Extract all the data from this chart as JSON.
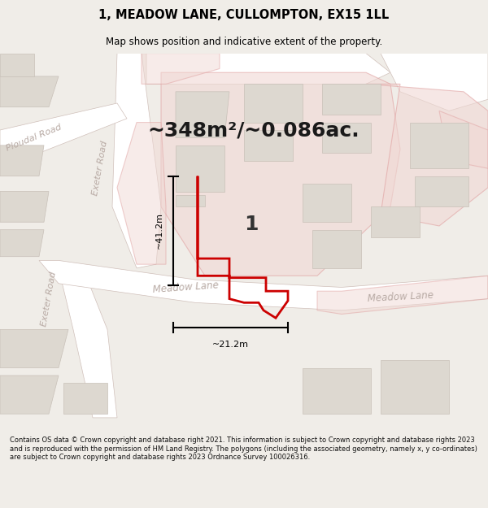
{
  "title": "1, MEADOW LANE, CULLOMPTON, EX15 1LL",
  "subtitle": "Map shows position and indicative extent of the property.",
  "area_text": "~348m²/~0.086ac.",
  "label_number": "1",
  "dim_vertical": "~41.2m",
  "dim_horizontal": "~21.2m",
  "footer": "Contains OS data © Crown copyright and database right 2021. This information is subject to Crown copyright and database rights 2023 and is reproduced with the permission of HM Land Registry. The polygons (including the associated geometry, namely x, y co-ordinates) are subject to Crown copyright and database rights 2023 Ordnance Survey 100026316.",
  "fig_bg": "#f0ede8",
  "map_bg": "#f5f2ee",
  "road_fill": "#ffffff",
  "road_edge": "#d0c0ba",
  "bldg_fill": "#ddd8d0",
  "bldg_edge": "#c8c0b8",
  "pink_fill": "#f0d8d4",
  "pink_edge": "#e0a0a0",
  "prop_edge": "#cc0000",
  "road_label_color": "#b8aaa4",
  "title_color": "#000000",
  "dim_color": "#000000",
  "footer_color": "#111111",
  "title_fontsize": 10.5,
  "subtitle_fontsize": 8.5,
  "area_fontsize": 18,
  "label_fontsize": 18,
  "dim_fontsize": 8,
  "road_label_fontsize": 8,
  "footer_fontsize": 6.0,
  "fig_width": 6.0,
  "fig_height": 6.25,
  "dpi": 100
}
